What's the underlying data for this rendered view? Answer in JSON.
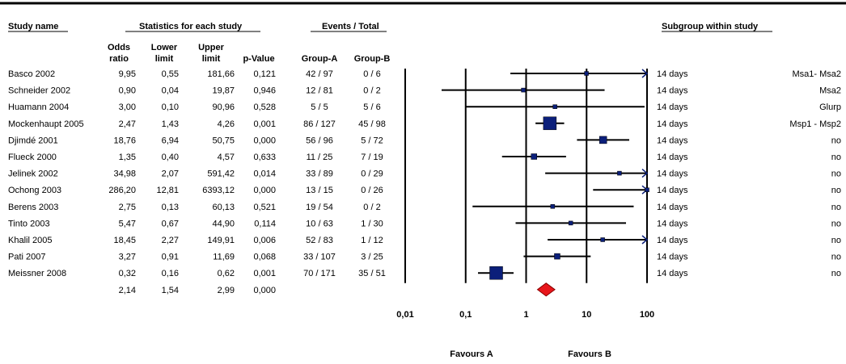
{
  "header": {
    "study_name": "Study name",
    "statistics": "Statistics for each study",
    "events": "Events / Total",
    "subgroup": "Subgroup within study"
  },
  "columns": {
    "odds_ratio": [
      "Odds",
      "ratio"
    ],
    "lower_limit": [
      "Lower",
      "limit"
    ],
    "upper_limit": [
      "Upper",
      "limit"
    ],
    "p_value": "p-Value",
    "group_a": "Group-A",
    "group_b": "Group-B"
  },
  "colors": {
    "study_marker": "#0b1f7a",
    "summary_diamond": "#e8161b",
    "summary_outline": "#8a0000"
  },
  "chart_data": {
    "type": "forest",
    "x_scale": "log",
    "xlim": [
      0.01,
      100
    ],
    "x_ticks": [
      "0,01",
      "0,1",
      "1",
      "10",
      "100"
    ],
    "x_tick_values": [
      0.01,
      0.1,
      1,
      10,
      100
    ],
    "favours_left": "Favours A",
    "favours_right": "Favours B",
    "studies": [
      {
        "name": "Basco 2002",
        "or": 9.95,
        "lower": 0.55,
        "upper": 181.66,
        "or_text": "9,95",
        "lower_text": "0,55",
        "upper_text": "181,66",
        "p_text": "0,121",
        "group_a": "42 / 97",
        "group_b": "0 / 6",
        "subgroup": "14 days",
        "detail": "Msa1- Msa2",
        "weight": 1
      },
      {
        "name": "Schneider 2002",
        "or": 0.9,
        "lower": 0.04,
        "upper": 19.87,
        "or_text": "0,90",
        "lower_text": "0,04",
        "upper_text": "19,87",
        "p_text": "0,946",
        "group_a": "12 / 81",
        "group_b": "0 / 2",
        "subgroup": "14 days",
        "detail": "Msa2",
        "weight": 1
      },
      {
        "name": "Huamann 2004",
        "or": 3.0,
        "lower": 0.1,
        "upper": 90.96,
        "or_text": "3,00",
        "lower_text": "0,10",
        "upper_text": "90,96",
        "p_text": "0,528",
        "group_a": "5 / 5",
        "group_b": "5 / 6",
        "subgroup": "14 days",
        "detail": "Glurp",
        "weight": 1
      },
      {
        "name": "Mockenhaupt 2005",
        "or": 2.47,
        "lower": 1.43,
        "upper": 4.26,
        "or_text": "2,47",
        "lower_text": "1,43",
        "upper_text": "4,26",
        "p_text": "0,001",
        "group_a": "86 / 127",
        "group_b": "45 / 98",
        "subgroup": "14 days",
        "detail": "Msp1 - Msp2",
        "weight": 5
      },
      {
        "name": "Djimdé 2001",
        "or": 18.76,
        "lower": 6.94,
        "upper": 50.75,
        "or_text": "18,76",
        "lower_text": "6,94",
        "upper_text": "50,75",
        "p_text": "0,000",
        "group_a": "56 / 96",
        "group_b": "5 / 72",
        "subgroup": "14 days",
        "detail": "no",
        "weight": 3
      },
      {
        "name": "Flueck 2000",
        "or": 1.35,
        "lower": 0.4,
        "upper": 4.57,
        "or_text": "1,35",
        "lower_text": "0,40",
        "upper_text": "4,57",
        "p_text": "0,633",
        "group_a": "11 / 25",
        "group_b": "7 / 19",
        "subgroup": "14 days",
        "detail": "no",
        "weight": 2
      },
      {
        "name": "Jelinek 2002",
        "or": 34.98,
        "lower": 2.07,
        "upper": 591.42,
        "or_text": "34,98",
        "lower_text": "2,07",
        "upper_text": "591,42",
        "p_text": "0,014",
        "group_a": "33 / 89",
        "group_b": "0 / 29",
        "subgroup": "14 days",
        "detail": "no",
        "weight": 1
      },
      {
        "name": "Ochong 2003",
        "or": 286.2,
        "lower": 12.81,
        "upper": 6393.12,
        "or_text": "286,20",
        "lower_text": "12,81",
        "upper_text": "6393,12",
        "p_text": "0,000",
        "group_a": "13 / 15",
        "group_b": "0 / 26",
        "subgroup": "14 days",
        "detail": "no",
        "weight": 1
      },
      {
        "name": "Berens 2003",
        "or": 2.75,
        "lower": 0.13,
        "upper": 60.13,
        "or_text": "2,75",
        "lower_text": "0,13",
        "upper_text": "60,13",
        "p_text": "0,521",
        "group_a": "19 / 54",
        "group_b": "0 / 2",
        "subgroup": "14 days",
        "detail": "no",
        "weight": 1
      },
      {
        "name": "Tinto 2003",
        "or": 5.47,
        "lower": 0.67,
        "upper": 44.9,
        "or_text": "5,47",
        "lower_text": "0,67",
        "upper_text": "44,90",
        "p_text": "0,114",
        "group_a": "10 / 63",
        "group_b": "1 / 30",
        "subgroup": "14 days",
        "detail": "no",
        "weight": 1
      },
      {
        "name": "Khalil 2005",
        "or": 18.45,
        "lower": 2.27,
        "upper": 149.91,
        "or_text": "18,45",
        "lower_text": "2,27",
        "upper_text": "149,91",
        "p_text": "0,006",
        "group_a": "52 / 83",
        "group_b": "1 / 12",
        "subgroup": "14 days",
        "detail": "no",
        "weight": 1
      },
      {
        "name": "Pati 2007",
        "or": 3.27,
        "lower": 0.91,
        "upper": 11.69,
        "or_text": "3,27",
        "lower_text": "0,91",
        "upper_text": "11,69",
        "p_text": "0,068",
        "group_a": "33 / 107",
        "group_b": "3 / 25",
        "subgroup": "14 days",
        "detail": "no",
        "weight": 2
      },
      {
        "name": "Meissner 2008",
        "or": 0.32,
        "lower": 0.16,
        "upper": 0.62,
        "or_text": "0,32",
        "lower_text": "0,16",
        "upper_text": "0,62",
        "p_text": "0,001",
        "group_a": "70 / 171",
        "group_b": "35 / 51",
        "subgroup": "14 days",
        "detail": "no",
        "weight": 5
      }
    ],
    "summary": {
      "or": 2.14,
      "lower": 1.54,
      "upper": 2.99,
      "or_text": "2,14",
      "lower_text": "1,54",
      "upper_text": "2,99",
      "p_text": "0,000"
    }
  }
}
